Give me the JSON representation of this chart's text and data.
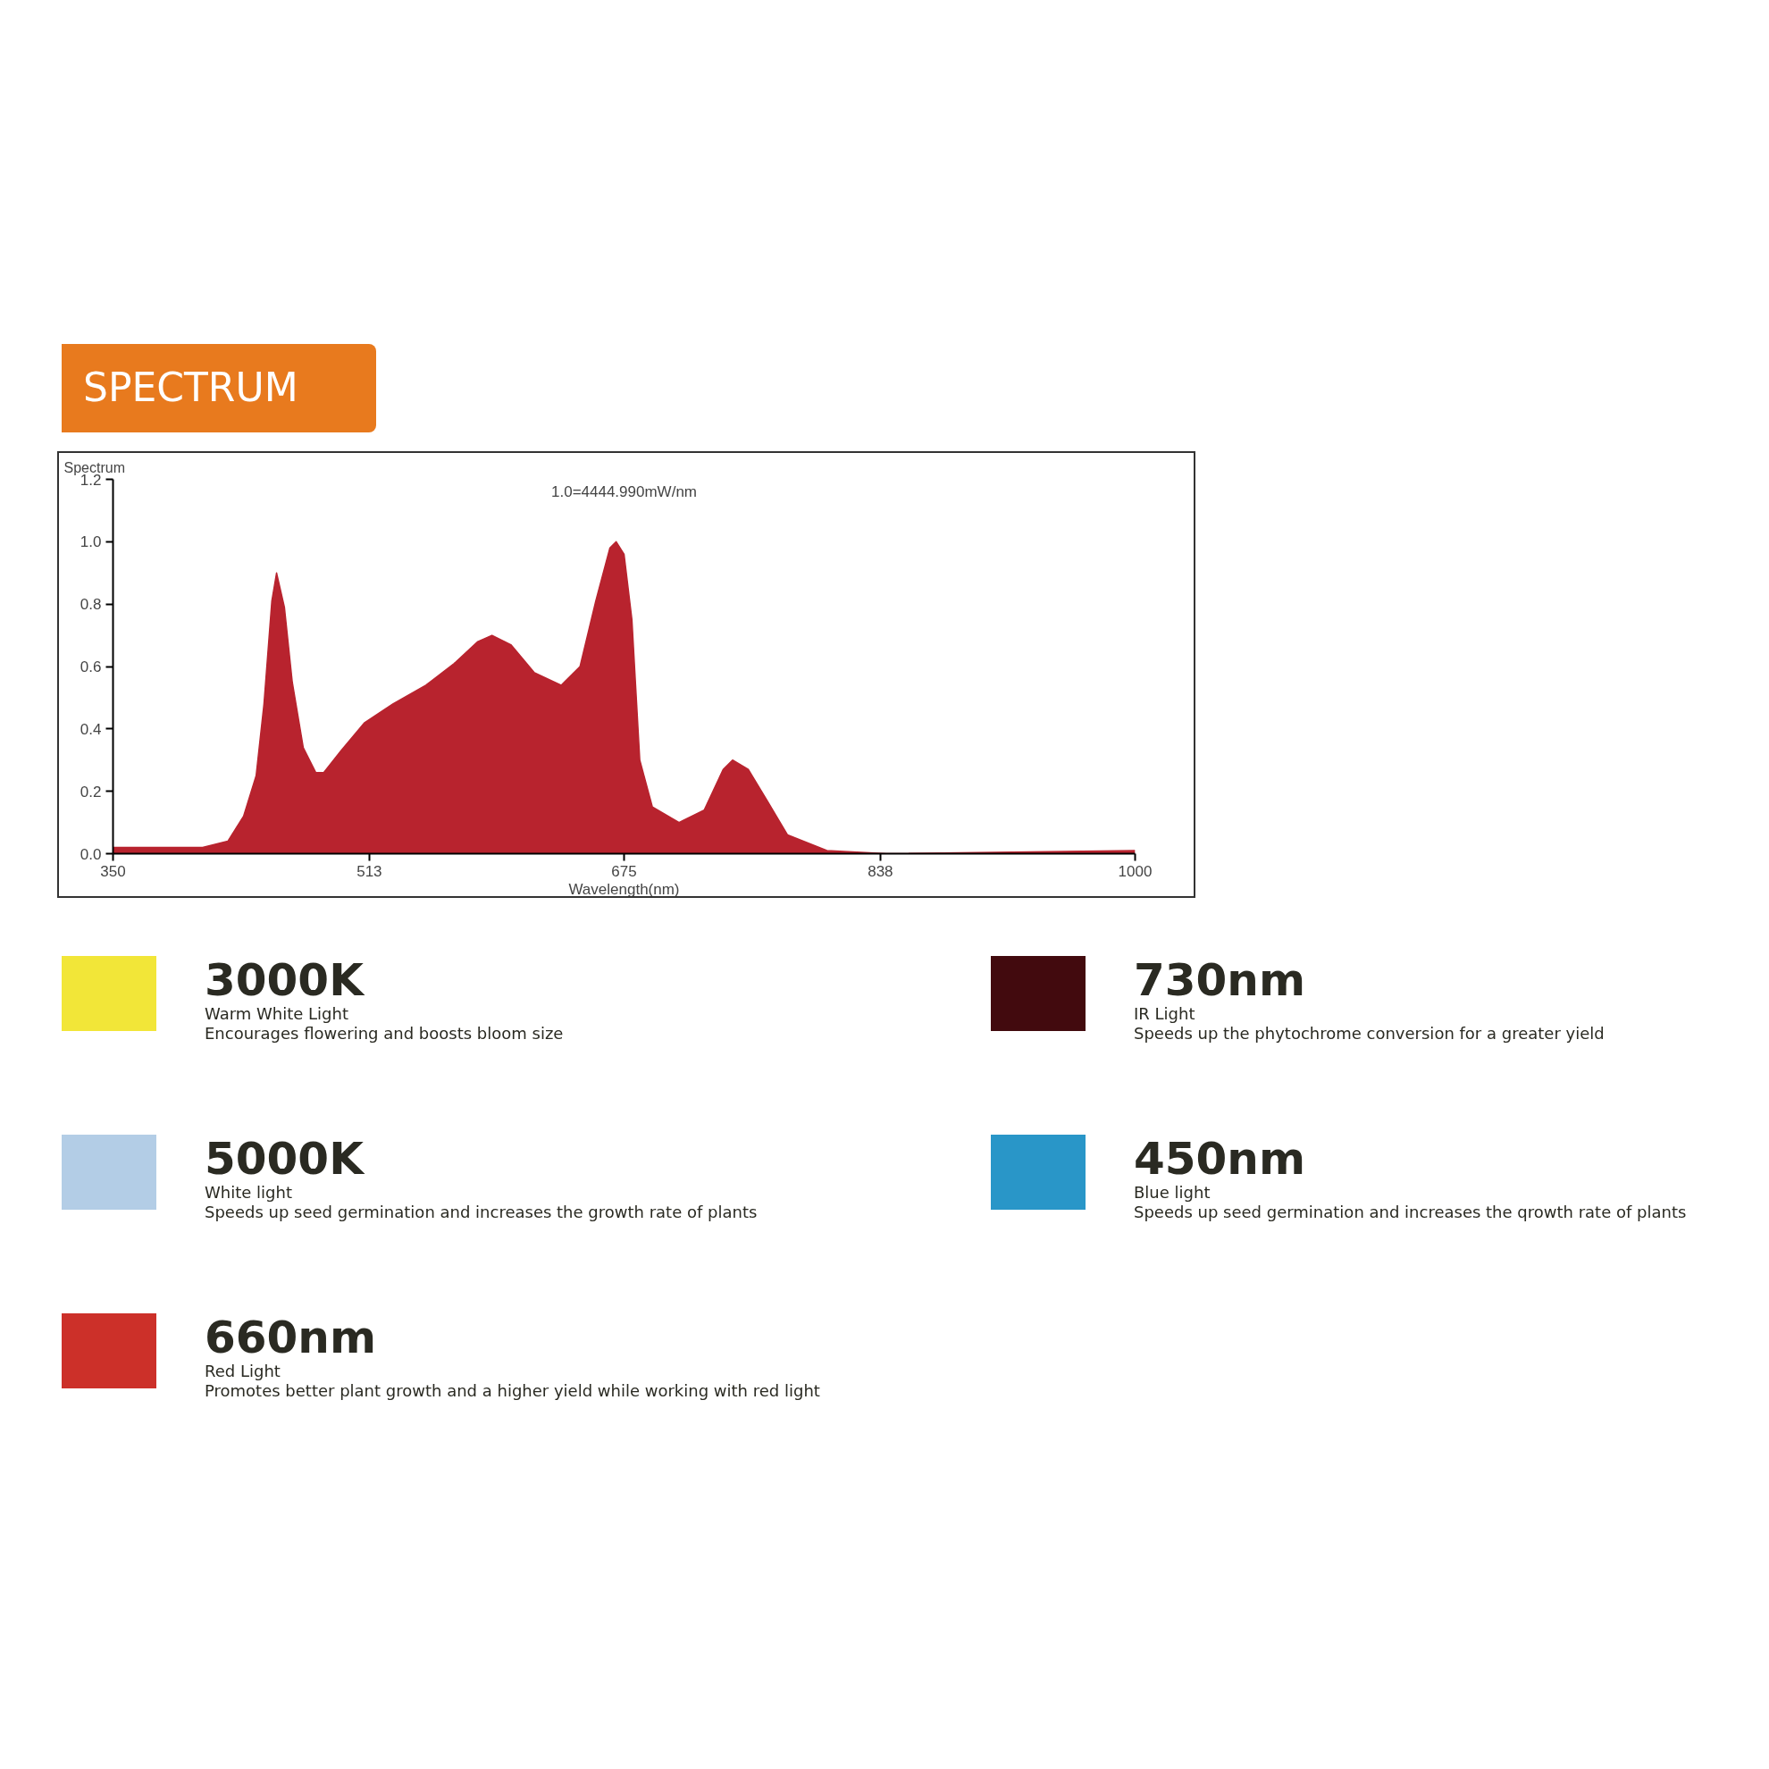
{
  "chart_data": [
    {
      "type": "area",
      "title": "SPECTRUM",
      "ylabel": "Spectrum",
      "xlabel": "Wavelength(nm)",
      "annotations": [
        "1.0=4444.990mW/nm"
      ],
      "color": "#b8232e",
      "grid": false,
      "x": [
        350,
        407,
        423,
        433,
        441,
        446,
        451,
        454,
        459,
        464,
        471,
        479,
        484,
        495,
        510,
        528,
        549,
        567,
        582,
        591,
        603,
        618,
        635,
        647,
        657,
        666,
        670,
        675,
        680,
        685,
        693,
        710,
        726,
        738,
        744,
        754,
        766,
        779,
        804,
        842,
        1000
      ],
      "values": [
        0.02,
        0.02,
        0.04,
        0.12,
        0.25,
        0.48,
        0.81,
        0.9,
        0.79,
        0.55,
        0.34,
        0.26,
        0.26,
        0.33,
        0.42,
        0.48,
        0.54,
        0.61,
        0.68,
        0.7,
        0.67,
        0.58,
        0.54,
        0.6,
        0.81,
        0.98,
        1.0,
        0.96,
        0.75,
        0.3,
        0.15,
        0.1,
        0.14,
        0.27,
        0.3,
        0.27,
        0.17,
        0.06,
        0.01,
        0.0,
        0.01
      ],
      "xlim": [
        350,
        1000
      ],
      "ylim": [
        0,
        1.2
      ],
      "xticks": [
        350,
        513,
        675,
        838,
        1000
      ],
      "yticks": [
        {
          "value": 0,
          "label": "0.0"
        },
        {
          "value": 0.2,
          "label": "0.2"
        },
        {
          "value": 0.4,
          "label": "0.4"
        },
        {
          "value": 0.6,
          "label": "0.6"
        },
        {
          "value": 0.8,
          "label": "0.8"
        },
        {
          "value": 1.0,
          "label": "1.0"
        },
        {
          "value": 1.2,
          "label": "1.2"
        }
      ]
    },
    {
      "type": "other",
      "colors": [
        "#f2e638",
        "#420a0e",
        "#b3cde6",
        "#2996c8",
        "#cc3029"
      ],
      "annotations": [
        "3000K",
        "Warm White Light",
        "Encourages flowering and boosts bloom size",
        "730nm",
        "IR Light",
        "Speeds up the phytochrome conversion for a greater yield",
        "5000K",
        "White light",
        "Speeds up seed germination and increases the growth rate of plants",
        "450nm",
        "Blue light",
        "Speeds up seed germination and increases the qrowth rate of plants",
        "660nm",
        "Red Light",
        "Promotes better plant growth and a higher yield while working with red light"
      ]
    }
  ]
}
